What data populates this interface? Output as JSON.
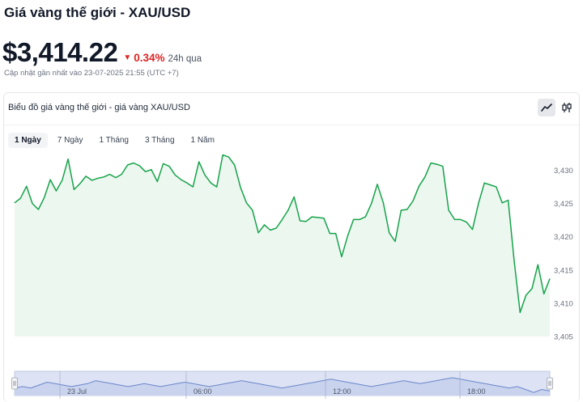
{
  "header": {
    "title": "Giá vàng thế giới - XAU/USD",
    "price": "$3,414.22",
    "change": "0.34%",
    "change_period": "24h qua",
    "updated": "Cập nhật gần nhất vào 23-07-2025 21:55 (UTC +7)",
    "change_color": "#dc2626"
  },
  "chart_card": {
    "title": "Biểu đồ giá vàng thế giới - giá vàng XAU/USD",
    "view_toggles": [
      {
        "name": "line-chart-icon",
        "active": true
      },
      {
        "name": "candlestick-icon",
        "active": false
      }
    ]
  },
  "tabs": [
    {
      "label": "1 Ngày",
      "active": true
    },
    {
      "label": "7 Ngày",
      "active": false
    },
    {
      "label": "1 Tháng",
      "active": false
    },
    {
      "label": "3 Tháng",
      "active": false
    },
    {
      "label": "1 Năm",
      "active": false
    }
  ],
  "chart_data": {
    "type": "area",
    "line_color": "#16a34a",
    "fill_color": "#ecf7ef",
    "y_ticks": [
      "3,430",
      "3,425",
      "3,420",
      "3,415",
      "3,410",
      "3,405"
    ],
    "y_tick_values": [
      3430,
      3425,
      3420,
      3415,
      3410,
      3405
    ],
    "ylim": [
      3405,
      3432.5
    ],
    "y_axis_side": "right",
    "grid": false,
    "values": [
      3425.1,
      3425.8,
      3427.6,
      3425.0,
      3424.1,
      3425.9,
      3428.6,
      3426.9,
      3428.5,
      3431.7,
      3427.1,
      3428.0,
      3429.1,
      3428.5,
      3428.8,
      3429.0,
      3429.4,
      3428.9,
      3429.4,
      3430.8,
      3431.1,
      3430.7,
      3429.8,
      3430.1,
      3428.3,
      3431.0,
      3430.6,
      3429.3,
      3428.6,
      3428.1,
      3427.5,
      3431.3,
      3429.3,
      3428.1,
      3427.5,
      3432.3,
      3432.0,
      3430.8,
      3427.4,
      3425.1,
      3424.0,
      3420.6,
      3421.8,
      3421.0,
      3421.3,
      3422.6,
      3424.0,
      3426.0,
      3422.4,
      3422.3,
      3423.0,
      3422.9,
      3422.8,
      3420.5,
      3420.5,
      3417.0,
      3420.1,
      3422.6,
      3422.6,
      3423.0,
      3425.0,
      3427.9,
      3425.1,
      3420.6,
      3419.3,
      3424.0,
      3424.1,
      3425.4,
      3427.6,
      3429.0,
      3431.1,
      3430.9,
      3430.6,
      3424.0,
      3422.6,
      3422.6,
      3422.2,
      3421.1,
      3425.0,
      3428.1,
      3427.8,
      3427.5,
      3425.1,
      3425.5,
      3416.5,
      3408.6,
      3411.2,
      3412.2,
      3415.8,
      3411.4,
      3413.7
    ],
    "navigator": {
      "x_labels": [
        "23 Jul",
        "06:00",
        "12:00",
        "18:00"
      ],
      "series": [
        4,
        5,
        4,
        6,
        8,
        7,
        6,
        5,
        6,
        7,
        9,
        8,
        7,
        6,
        5,
        6,
        7,
        6,
        5,
        6,
        7,
        8,
        7,
        6,
        5,
        6,
        7,
        8,
        9,
        8,
        7,
        6,
        5,
        4,
        5,
        6,
        7,
        8,
        9,
        10,
        9,
        8,
        7,
        6,
        5,
        6,
        7,
        8,
        9,
        8,
        7,
        8,
        9,
        10,
        11,
        10,
        9,
        8,
        7,
        6,
        5,
        4,
        5,
        3,
        1,
        3,
        2
      ]
    }
  }
}
